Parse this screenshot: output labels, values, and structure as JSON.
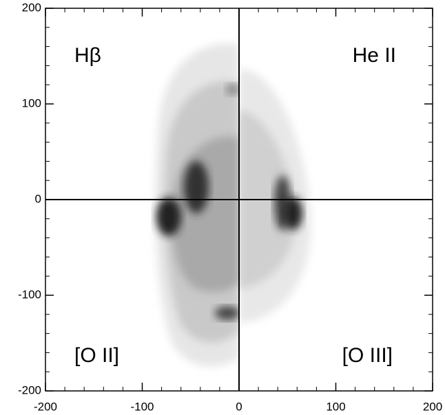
{
  "chart_data": {
    "type": "image",
    "annotations": [
      "Hβ",
      "He II",
      "[O II]",
      "[O III]"
    ],
    "xlim": [
      -200,
      200
    ],
    "ylim": [
      -200,
      200
    ],
    "xticks": [
      -200,
      -100,
      0,
      100,
      200
    ],
    "yticks": [
      -200,
      -100,
      0,
      100,
      200
    ],
    "xminorticks": [
      -180,
      -160,
      -140,
      -120,
      -80,
      -60,
      -40,
      -20,
      20,
      40,
      60,
      80,
      120,
      140,
      160,
      180
    ],
    "yminorticks": [
      -180,
      -160,
      -140,
      -120,
      -80,
      -60,
      -40,
      -20,
      20,
      40,
      60,
      80,
      120,
      140,
      160,
      180
    ],
    "color": "#000000"
  }
}
